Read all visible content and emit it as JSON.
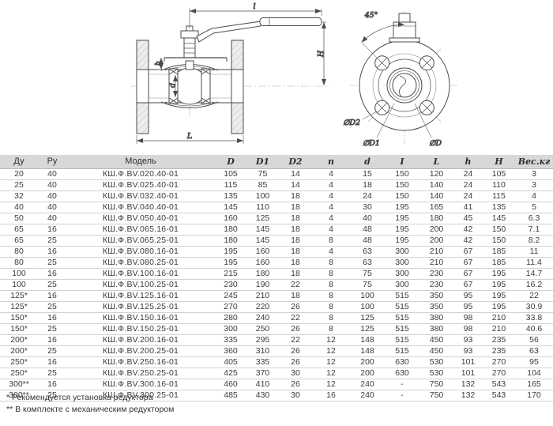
{
  "diagram": {
    "side_view": {
      "dim_handle": "l",
      "dim_height": "H",
      "dim_stem": "h",
      "dim_bore": "d",
      "dim_length": "L"
    },
    "front_view": {
      "dim_angle": "45°",
      "dim_bolt_hole": "∅D2",
      "dim_bolt_circle": "∅D1",
      "dim_flange": "∅D"
    }
  },
  "table": {
    "columns": [
      "Ду",
      "Ру",
      "Модель",
      "D",
      "D1",
      "D2",
      "n",
      "d",
      "I",
      "L",
      "h",
      "H",
      "Вес.кг"
    ],
    "rows": [
      [
        "20",
        "40",
        "КШ.Ф.BV.020.40-01",
        "105",
        "75",
        "14",
        "4",
        "15",
        "150",
        "120",
        "24",
        "105",
        "3"
      ],
      [
        "25",
        "40",
        "КШ.Ф.BV.025.40-01",
        "115",
        "85",
        "14",
        "4",
        "18",
        "150",
        "140",
        "24",
        "110",
        "3"
      ],
      [
        "32",
        "40",
        "КШ.Ф.BV.032.40-01",
        "135",
        "100",
        "18",
        "4",
        "24",
        "150",
        "140",
        "24",
        "115",
        "4"
      ],
      [
        "40",
        "40",
        "КШ.Ф.BV.040.40-01",
        "145",
        "110",
        "18",
        "4",
        "30",
        "195",
        "165",
        "41",
        "135",
        "5"
      ],
      [
        "50",
        "40",
        "КШ.Ф.BV.050.40-01",
        "160",
        "125",
        "18",
        "4",
        "40",
        "195",
        "180",
        "45",
        "145",
        "6.3"
      ],
      [
        "65",
        "16",
        "КШ.Ф.BV.065.16-01",
        "180",
        "145",
        "18",
        "4",
        "48",
        "195",
        "200",
        "42",
        "150",
        "7.1"
      ],
      [
        "65",
        "25",
        "КШ.Ф.BV.065.25-01",
        "180",
        "145",
        "18",
        "8",
        "48",
        "195",
        "200",
        "42",
        "150",
        "8.2"
      ],
      [
        "80",
        "16",
        "КШ.Ф.BV.080.16-01",
        "195",
        "160",
        "18",
        "4",
        "63",
        "300",
        "210",
        "67",
        "185",
        "11"
      ],
      [
        "80",
        "25",
        "КШ.Ф.BV.080.25-01",
        "195",
        "160",
        "18",
        "8",
        "63",
        "300",
        "210",
        "67",
        "185",
        "11.4"
      ],
      [
        "100",
        "16",
        "КШ.Ф.BV.100.16-01",
        "215",
        "180",
        "18",
        "8",
        "75",
        "300",
        "230",
        "67",
        "195",
        "14.7"
      ],
      [
        "100",
        "25",
        "КШ.Ф.BV.100.25-01",
        "230",
        "190",
        "22",
        "8",
        "75",
        "300",
        "230",
        "67",
        "195",
        "16.2"
      ],
      [
        "125*",
        "16",
        "КШ.Ф.BV.125.16-01",
        "245",
        "210",
        "18",
        "8",
        "100",
        "515",
        "350",
        "95",
        "195",
        "22"
      ],
      [
        "125*",
        "25",
        "КШ.Ф.BV.125.25-01",
        "270",
        "220",
        "26",
        "8",
        "100",
        "515",
        "350",
        "95",
        "195",
        "30.9"
      ],
      [
        "150*",
        "16",
        "КШ.Ф.BV.150.16-01",
        "280",
        "240",
        "22",
        "8",
        "125",
        "515",
        "380",
        "98",
        "210",
        "33.8"
      ],
      [
        "150*",
        "25",
        "КШ.Ф.BV.150.25-01",
        "300",
        "250",
        "26",
        "8",
        "125",
        "515",
        "380",
        "98",
        "210",
        "40.6"
      ],
      [
        "200*",
        "16",
        "КШ.Ф.BV.200.16-01",
        "335",
        "295",
        "22",
        "12",
        "148",
        "515",
        "450",
        "93",
        "235",
        "56"
      ],
      [
        "200*",
        "25",
        "КШ.Ф.BV.200.25-01",
        "360",
        "310",
        "26",
        "12",
        "148",
        "515",
        "450",
        "93",
        "235",
        "63"
      ],
      [
        "250*",
        "16",
        "КШ.Ф.BV.250.16-01",
        "405",
        "335",
        "26",
        "12",
        "200",
        "630",
        "530",
        "101",
        "270",
        "95"
      ],
      [
        "250*",
        "25",
        "КШ.Ф.BV.250.25-01",
        "425",
        "370",
        "30",
        "12",
        "200",
        "630",
        "530",
        "101",
        "270",
        "104"
      ],
      [
        "300**",
        "16",
        "КШ.Ф.BV.300.16-01",
        "460",
        "410",
        "26",
        "12",
        "240",
        "-",
        "750",
        "132",
        "543",
        "165"
      ],
      [
        "300**",
        "25",
        "КШ.Ф.BV.300.25-01",
        "485",
        "430",
        "30",
        "16",
        "240",
        "-",
        "750",
        "132",
        "543",
        "170"
      ]
    ]
  },
  "footnotes": [
    "* Рекомендуется установка редуктора",
    "** В комплекте с механическим редуктором"
  ],
  "colors": {
    "header_bg": "#d8d8d8",
    "row_border": "#d2d2d2",
    "line": "#4b4b4b",
    "thin_line": "#9a9a9a",
    "flange_fill": "#ededed"
  }
}
